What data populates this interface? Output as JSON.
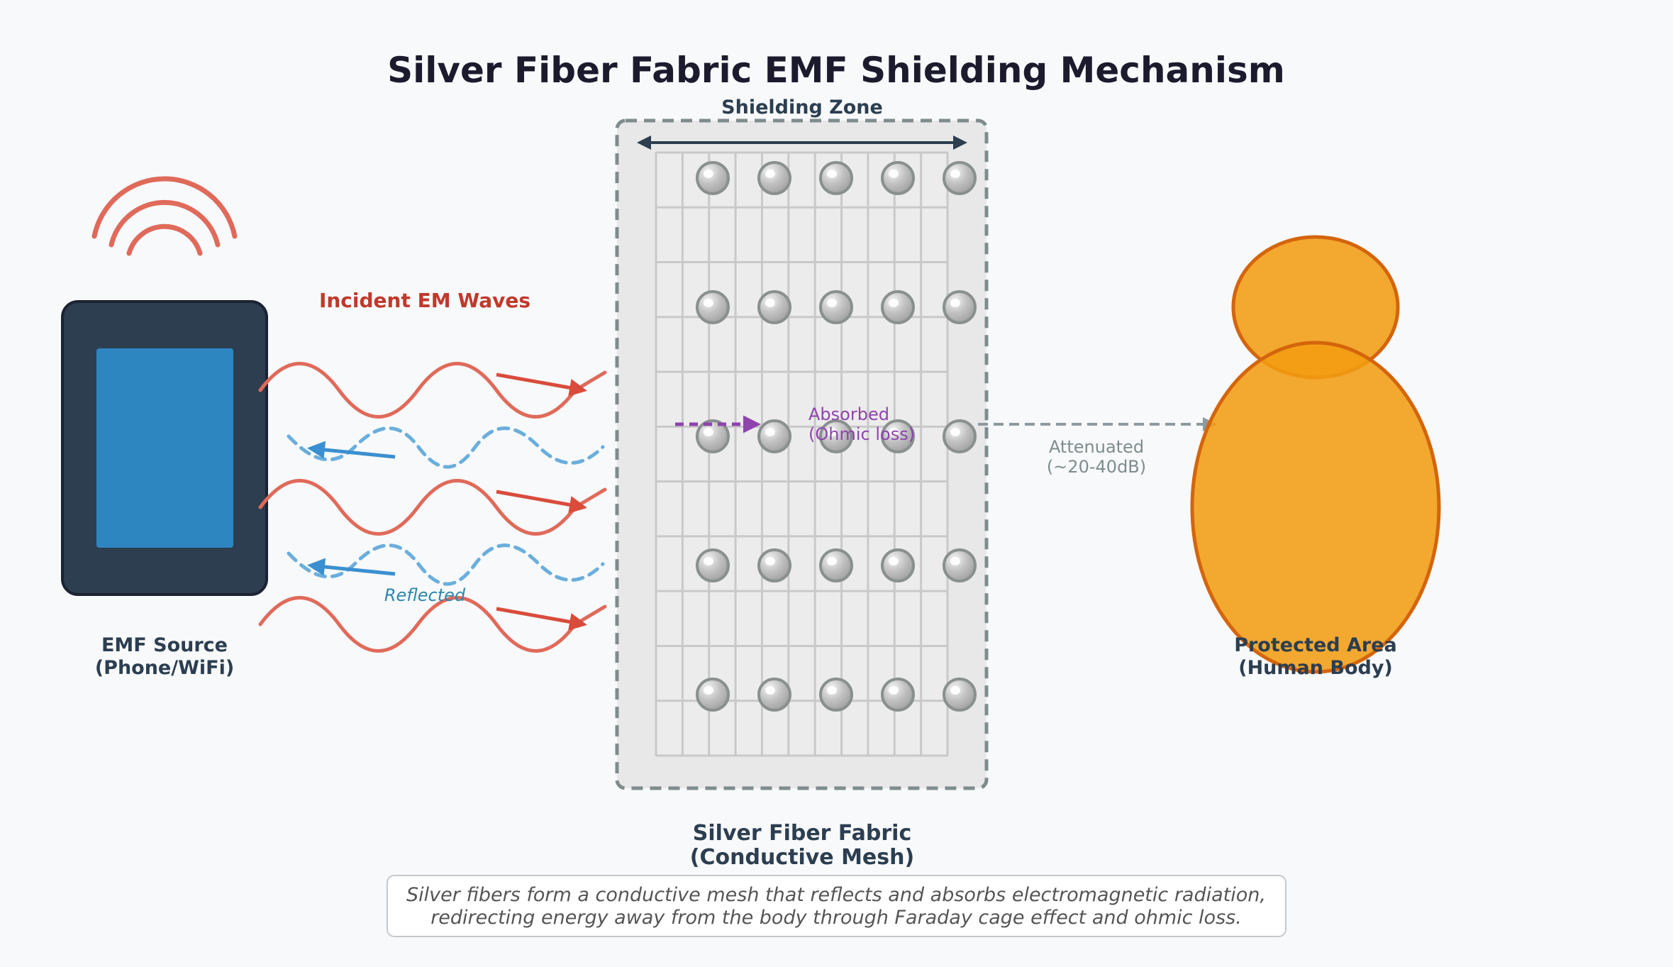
{
  "title": "Silver Fiber Fabric EMF Shielding Mechanism",
  "shielding_zone_label": "Shielding Zone",
  "incident_label": "Incident EM Waves",
  "reflected_label": "Reflected",
  "absorbed_label_line1": "Absorbed",
  "absorbed_label_line2": "(Ohmic loss)",
  "attenuated_label_line1": "Attenuated",
  "attenuated_label_line2": "(~20-40dB)",
  "source_label_line1": "EMF Source",
  "source_label_line2": "(Phone/WiFi)",
  "fabric_label_line1": "Silver Fiber Fabric",
  "fabric_label_line2": "(Conductive Mesh)",
  "protected_label_line1": "Protected Area",
  "protected_label_line2": "(Human Body)",
  "caption_line1": "Silver fibers form a conductive mesh that reflects and absorbs electromagnetic radiation,",
  "caption_line2": "redirecting energy away from the body through Faraday cage effect and ohmic loss.",
  "colors": {
    "title": "#1c1b2e",
    "label": "#2c3e50",
    "incident": "#e06a5a",
    "incident_arrow": "#d94c3c",
    "incident_text": "#c0392b",
    "reflected": "#6aaedc",
    "reflected_arrow": "#3a8fd0",
    "reflected_text": "#2e86ab",
    "absorbed": "#8e44ad",
    "attenuated": "#8d9aa0",
    "phone_body": "#2c3e50",
    "phone_screen": "#2e86c1",
    "body": "#f0a22e",
    "body_stroke": "#d4650c",
    "fabric_fill": "#e8e8e8",
    "fabric_border": "#7f8c8d",
    "node": "#bfbfbf"
  }
}
